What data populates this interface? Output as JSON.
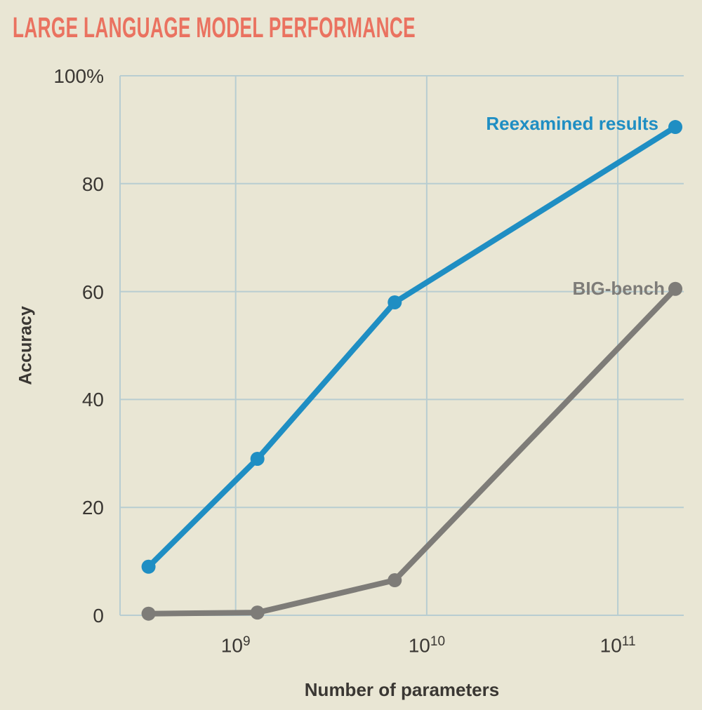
{
  "title": "LARGE LANGUAGE MODEL PERFORMANCE",
  "colors": {
    "bg": "#e9e6d4",
    "coral": "#ea7260",
    "blue": "#1f8ec3",
    "gray": "#7e7c78",
    "grid": "#b8cdd1",
    "text": "#3a3733"
  },
  "chart_data": {
    "type": "line",
    "title": "LARGE LANGUAGE MODEL PERFORMANCE",
    "xlabel": "Number of parameters",
    "ylabel": "Accuracy",
    "x_scale": "log",
    "grid": true,
    "xlim_log": [
      8.395,
      11.345
    ],
    "ylim": [
      0,
      100
    ],
    "x_ticks": [
      {
        "base": "10",
        "exp": "9",
        "value": 1000000000
      },
      {
        "base": "10",
        "exp": "10",
        "value": 10000000000
      },
      {
        "base": "10",
        "exp": "11",
        "value": 100000000000
      }
    ],
    "y_ticks": [
      {
        "label": "0",
        "value": 0
      },
      {
        "label": "20",
        "value": 20
      },
      {
        "label": "40",
        "value": 40
      },
      {
        "label": "60",
        "value": 60
      },
      {
        "label": "80",
        "value": 80
      },
      {
        "label": "100%",
        "value": 100
      }
    ],
    "series": [
      {
        "name": "Reexamined results",
        "color_key": "blue",
        "x": [
          350000000,
          1300000000,
          6800000000,
          200000000000
        ],
        "y": [
          9,
          29,
          58,
          90.5
        ]
      },
      {
        "name": "BIG-bench",
        "color_key": "gray",
        "x": [
          350000000,
          1300000000,
          6800000000,
          200000000000
        ],
        "y": [
          0.3,
          0.5,
          6.5,
          60.5
        ]
      }
    ],
    "legend_position": "inline-right"
  }
}
